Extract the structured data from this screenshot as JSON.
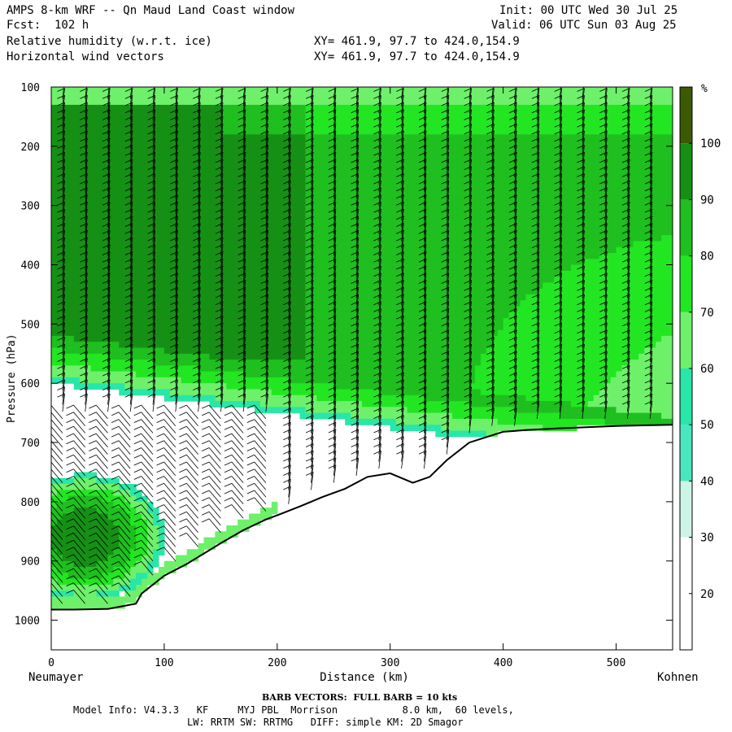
{
  "header": {
    "title": "AMPS 8-km WRF -- Qn Maud Land Coast window",
    "fcst": "Fcst:  102 h",
    "field1": "Relative humidity (w.r.t. ice)",
    "field2": "Horizontal wind vectors",
    "init": "Init: 00 UTC Wed 30 Jul 25",
    "valid": "Valid: 06 UTC Sun 03 Aug 25",
    "xy1": "XY= 461.9, 97.7 to 424.0,154.9",
    "xy2": "XY= 461.9, 97.7 to 424.0,154.9"
  },
  "footer": {
    "barb": "BARB VECTORS:  FULL BARB = 10 kts",
    "model_line1": "Model Info: V4.3.3   KF     MYJ PBL  Morrison           8.0 km,  60 levels,",
    "model_line2": "LW: RRTM SW: RRTMG   DIFF: simple KM: 2D Smagor"
  },
  "colors": {
    "c10": "#ffffff",
    "c20": "#ffffff",
    "c30": "#cdf5e6",
    "c40": "#49e6c0",
    "c50": "#29e6a9",
    "c60": "#6ef06b",
    "c70": "#22e622",
    "c80": "#1ebf1e",
    "c90": "#159015",
    "c100": "#3c5a04",
    "terrain": "#000000"
  },
  "chart_data": {
    "type": "heatmap",
    "title": "Relative humidity (w.r.t. ice)",
    "xlabel": "Distance (km)",
    "ylabel": "Pressure (hPa)",
    "xlim": [
      0,
      550
    ],
    "ylim": [
      1050,
      100
    ],
    "x_ticks": [
      0,
      100,
      200,
      300,
      400,
      500
    ],
    "y_ticks": [
      100,
      200,
      300,
      400,
      500,
      600,
      700,
      800,
      900,
      1000
    ],
    "x_start_label": "Neumayer",
    "x_end_label": "Kohnen",
    "colorbar": {
      "unit": "%",
      "levels": [
        10,
        20,
        30,
        40,
        50,
        60,
        70,
        80,
        90,
        100,
        110
      ],
      "tick_labels": [
        "20",
        "30",
        "40",
        "50",
        "60",
        "70",
        "80",
        "90",
        "100"
      ]
    },
    "terrain_surface_hPa": {
      "x": [
        0,
        20,
        50,
        75,
        80,
        100,
        120,
        150,
        170,
        190,
        200,
        220,
        240,
        260,
        280,
        300,
        320,
        335,
        350,
        370,
        390,
        400,
        420,
        450,
        500,
        550
      ],
      "p": [
        982,
        982,
        981,
        972,
        955,
        925,
        905,
        870,
        848,
        830,
        823,
        808,
        792,
        778,
        758,
        752,
        768,
        758,
        730,
        700,
        688,
        682,
        679,
        676,
        672,
        670
      ]
    },
    "humidity_bands": [
      {
        "level": 100,
        "desc": "upper moist layer",
        "x_from": 0,
        "x_to": 350,
        "p_top": 110,
        "p_bottom": 560
      },
      {
        "level": 90,
        "desc": "moist layer",
        "x_from": 0,
        "x_to": 550,
        "p_top": 110,
        "p_bottom": 600
      },
      {
        "level": 80,
        "desc": "moist layer",
        "x_from": 0,
        "x_to": 550,
        "p_top": 110,
        "p_bottom": 640
      },
      {
        "level": 100,
        "desc": "low-level moist pocket",
        "x_from": 0,
        "x_to": 80,
        "p_top": 810,
        "p_bottom": 930
      }
    ],
    "wind_barbs": {
      "columns_km": [
        10,
        30,
        50,
        70,
        90,
        110,
        130,
        150,
        170,
        190,
        210,
        230,
        250,
        270,
        290,
        310,
        330,
        350,
        370,
        390,
        410,
        430,
        450,
        470,
        490,
        510,
        530
      ],
      "full_barb_kts": 10
    }
  }
}
